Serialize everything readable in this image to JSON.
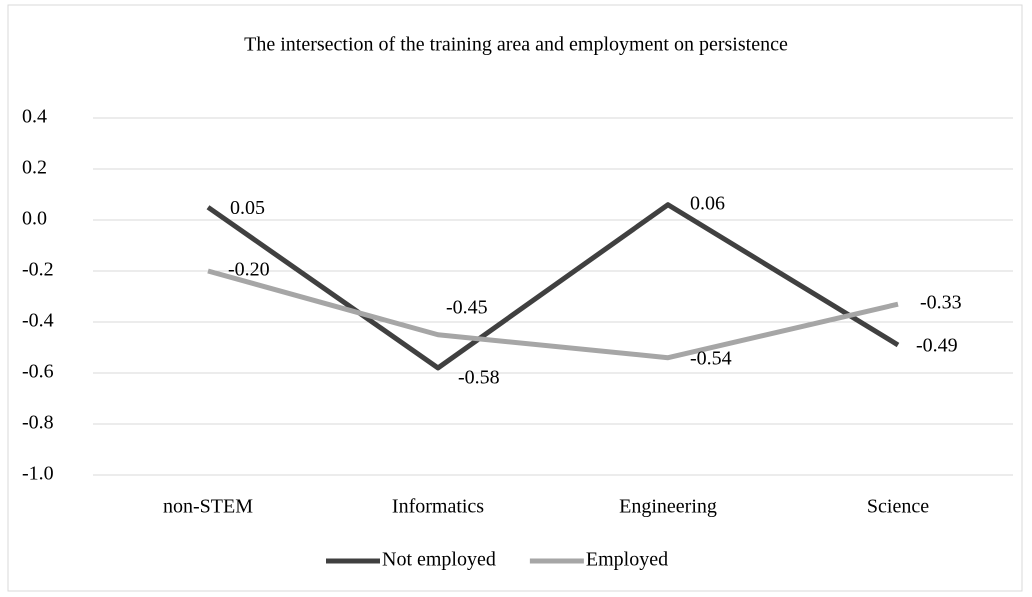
{
  "chart_data": {
    "type": "line",
    "title": "The intersection of the training area and employment on persistence",
    "categories": [
      "non-STEM",
      "Informatics",
      "Engineering",
      "Science"
    ],
    "series": [
      {
        "name": "Not employed",
        "color": "#404040",
        "values": [
          0.05,
          -0.58,
          0.06,
          -0.49
        ],
        "value_labels": [
          "0.05",
          "-0.58",
          "0.06",
          "-0.49"
        ]
      },
      {
        "name": "Employed",
        "color": "#a6a6a6",
        "values": [
          -0.2,
          -0.45,
          -0.54,
          -0.33
        ],
        "value_labels": [
          "-0.20",
          "-0.45",
          "-0.54",
          "-0.33"
        ]
      }
    ],
    "ylim": [
      -1.0,
      0.4
    ],
    "yticks": [
      {
        "value": -1.0,
        "label": "-1.0"
      },
      -0.8,
      -0.6,
      -0.4,
      -0.2,
      {
        "value": 0,
        "label": "0.0"
      },
      0.2,
      0.4
    ],
    "grid": true,
    "legend": "bottom"
  }
}
